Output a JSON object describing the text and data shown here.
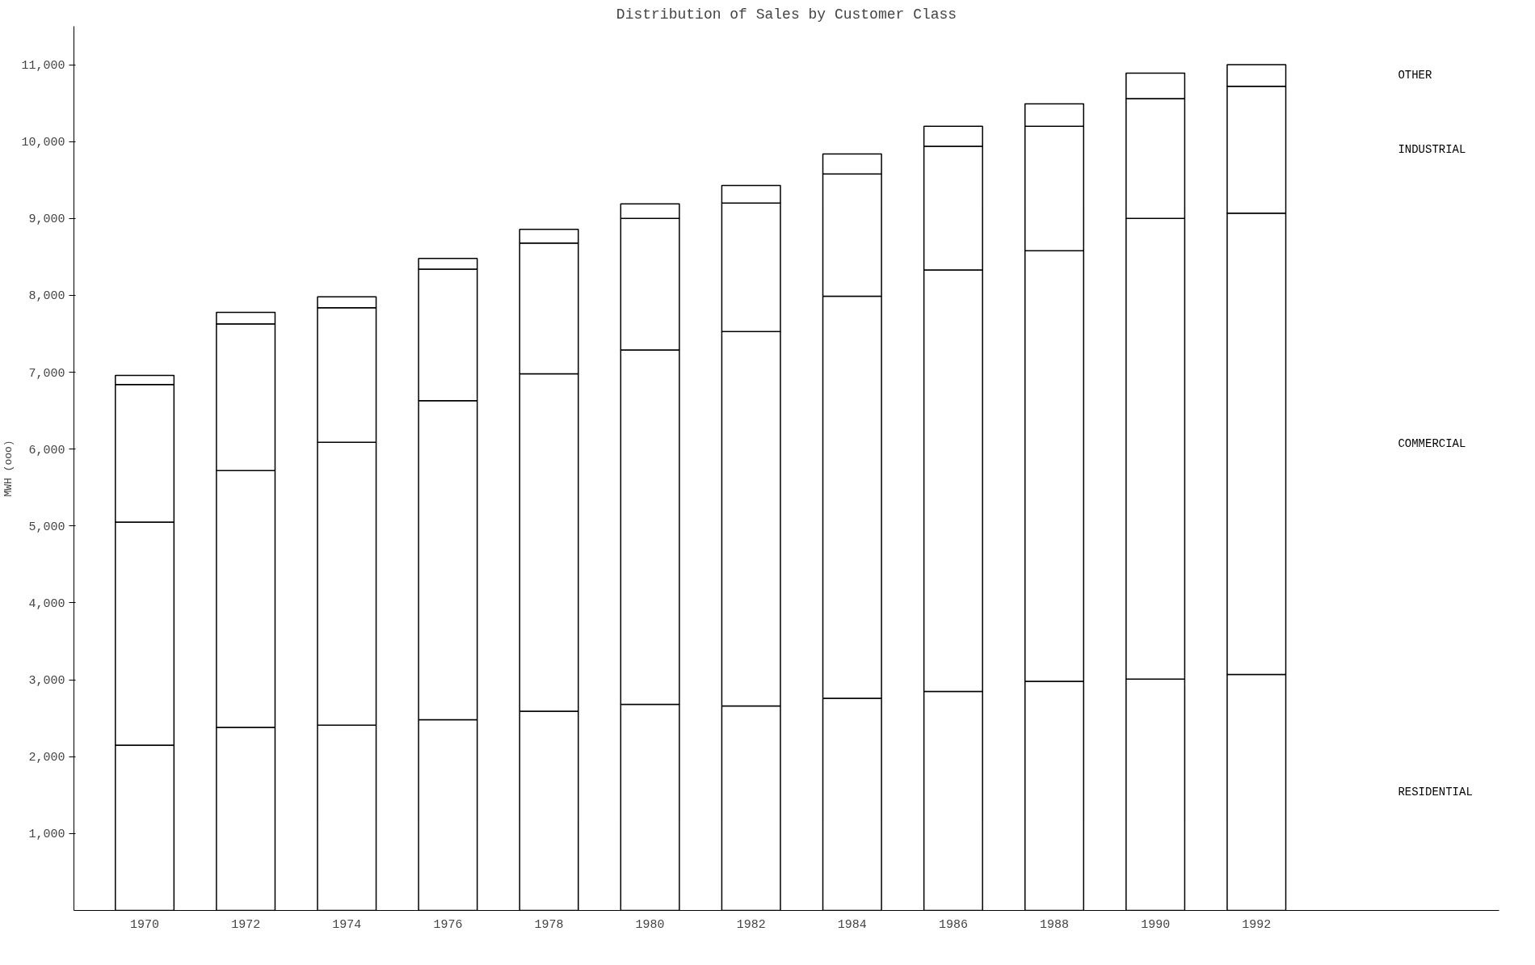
{
  "chart_data": {
    "type": "bar",
    "title": "Distribution of Sales by Customer Class",
    "ylabel": "MWH (ooo)",
    "stacked": true,
    "categories": [
      "1970",
      "1972",
      "1974",
      "1976",
      "1978",
      "1980",
      "1982",
      "1984",
      "1986",
      "1988",
      "1990",
      "1992"
    ],
    "series": [
      {
        "name": "RESIDENTIAL",
        "color": "#ffffff",
        "values": [
          2150,
          2380,
          2410,
          2480,
          2590,
          2680,
          2660,
          2760,
          2850,
          2980,
          3010,
          3070
        ]
      },
      {
        "name": "COMMERCIAL",
        "color": "#ffffff",
        "values": [
          2900,
          3340,
          3680,
          4150,
          4390,
          4610,
          4870,
          5230,
          5480,
          5600,
          5990,
          6000
        ]
      },
      {
        "name": "INDUSTRIAL",
        "color": "#ffffff",
        "values": [
          1790,
          1910,
          1750,
          1710,
          1700,
          1710,
          1670,
          1590,
          1610,
          1620,
          1560,
          1650
        ]
      },
      {
        "name": "OTHER",
        "color": "#ffffff",
        "values": [
          120,
          150,
          140,
          140,
          180,
          190,
          230,
          260,
          260,
          290,
          330,
          280
        ]
      }
    ],
    "ylim": [
      0,
      11500
    ],
    "yticks": [
      {
        "value": 1000,
        "label": "1,000"
      },
      {
        "value": 2000,
        "label": "2,000"
      },
      {
        "value": 3000,
        "label": "3,000"
      },
      {
        "value": 4000,
        "label": "4,000"
      },
      {
        "value": 5000,
        "label": "5,000"
      },
      {
        "value": 6000,
        "label": "6,000"
      },
      {
        "value": 7000,
        "label": "7,000"
      },
      {
        "value": 8000,
        "label": "8,000"
      },
      {
        "value": 9000,
        "label": "9,000"
      },
      {
        "value": 10000,
        "label": "10,000"
      },
      {
        "value": 11000,
        "label": "11,000"
      }
    ],
    "grid": false
  }
}
